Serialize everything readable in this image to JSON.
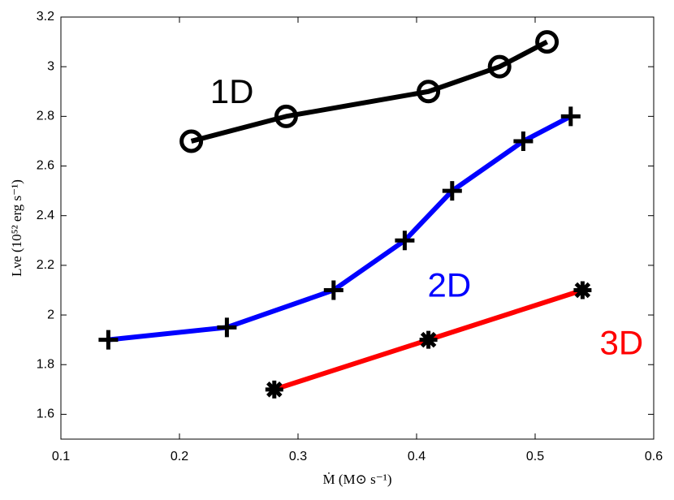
{
  "chart_data": {
    "type": "line",
    "xlabel": "Ṁ (M⊙ s⁻¹)",
    "ylabel": "Lνe (10⁵² erg s⁻¹)",
    "xlim": [
      0.1,
      0.6
    ],
    "ylim": [
      1.5,
      3.2
    ],
    "xticks": [
      0.1,
      0.2,
      0.3,
      0.4,
      0.5,
      0.6
    ],
    "yticks": [
      1.6,
      1.8,
      2,
      2.2,
      2.4,
      2.6,
      2.8,
      3,
      3.2
    ],
    "series": [
      {
        "name": "1D",
        "color": "#000000",
        "marker": "circle",
        "marker_color": "#000000",
        "x": [
          0.21,
          0.29,
          0.41,
          0.47,
          0.51
        ],
        "values": [
          2.7,
          2.8,
          2.9,
          3.0,
          3.1
        ]
      },
      {
        "name": "2D",
        "color": "#0000ff",
        "marker": "plus",
        "marker_color": "#000000",
        "x": [
          0.14,
          0.24,
          0.33,
          0.39,
          0.43,
          0.49,
          0.53
        ],
        "values": [
          1.9,
          1.95,
          2.1,
          2.3,
          2.5,
          2.7,
          2.8
        ]
      },
      {
        "name": "3D",
        "color": "#ff0000",
        "marker": "asterisk",
        "marker_color": "#000000",
        "x": [
          0.28,
          0.41,
          0.54
        ],
        "values": [
          1.7,
          1.9,
          2.1
        ]
      }
    ]
  }
}
